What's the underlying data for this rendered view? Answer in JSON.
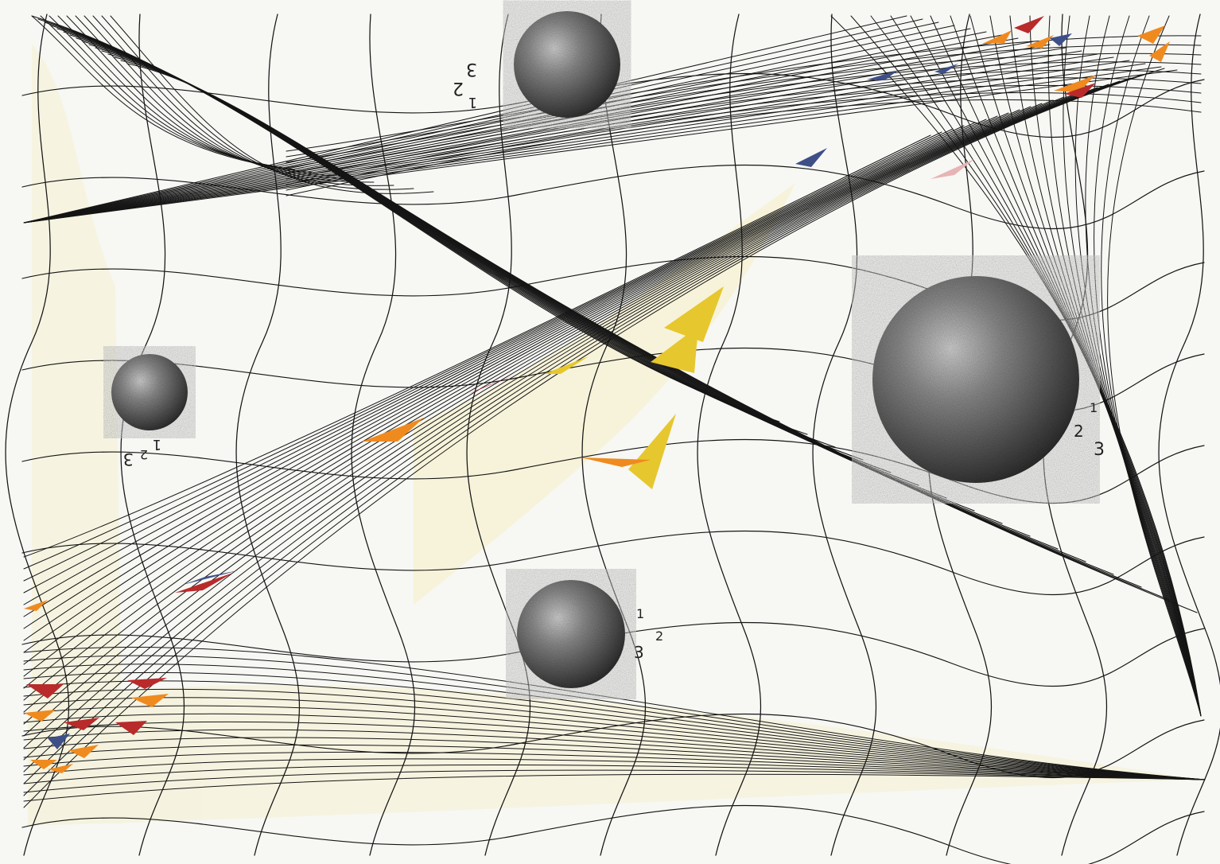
{
  "artwork": {
    "sphere_labels": {
      "top": {
        "one": "1",
        "two": "2",
        "three": "3"
      },
      "left": {
        "one": "1",
        "two": "2",
        "three": "3"
      },
      "right": {
        "one": "1",
        "two": "2",
        "three": "3"
      },
      "bottom": {
        "one": "1",
        "two": "2",
        "three": "3"
      }
    },
    "palette": {
      "ink": "#151515",
      "pencil_dark": "#3f3f3f",
      "paper": "#f7f7f4",
      "yellow": "#e6c72e",
      "orange": "#ef8a1f",
      "red": "#b92a2b",
      "blue": "#3e4f88",
      "pale_yellow": "#f3efbf",
      "pink": "#e7b4b5"
    }
  }
}
